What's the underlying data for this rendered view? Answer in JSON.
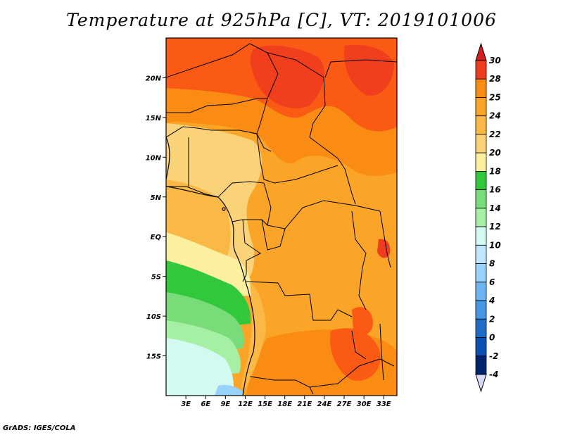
{
  "title": "Temperature at 925hPa [C], VT: 2019101006",
  "footer": "GrADS: IGES/COLA",
  "map": {
    "lon_labels": [
      "3E",
      "6E",
      "9E",
      "12E",
      "15E",
      "18E",
      "21E",
      "24E",
      "27E",
      "30E",
      "33E"
    ],
    "lat_labels": [
      "20N",
      "15N",
      "10N",
      "5N",
      "EQ",
      "5S",
      "10S",
      "15S"
    ],
    "lon_range": [
      0,
      35
    ],
    "lat_range": [
      -20,
      25
    ]
  },
  "colorbar": {
    "levels": [
      "30",
      "28",
      "25",
      "24",
      "22",
      "20",
      "18",
      "16",
      "14",
      "12",
      "10",
      "8",
      "6",
      "4",
      "2",
      "0",
      "-2",
      "-4"
    ],
    "colors": [
      "#f03c1e",
      "#fa5a14",
      "#fa8c14",
      "#faa528",
      "#fab946",
      "#fad278",
      "#fcf0a0",
      "#32c83c",
      "#78dc78",
      "#a5f0a5",
      "#d2faf0",
      "#bee6ff",
      "#96d2fa",
      "#6eb4f0",
      "#4696e6",
      "#1e6ec8",
      "#0a50b4",
      "#00226e"
    ],
    "top_arrow_color": "#d21e1e",
    "bottom_arrow_color": "#d8d8f8"
  }
}
